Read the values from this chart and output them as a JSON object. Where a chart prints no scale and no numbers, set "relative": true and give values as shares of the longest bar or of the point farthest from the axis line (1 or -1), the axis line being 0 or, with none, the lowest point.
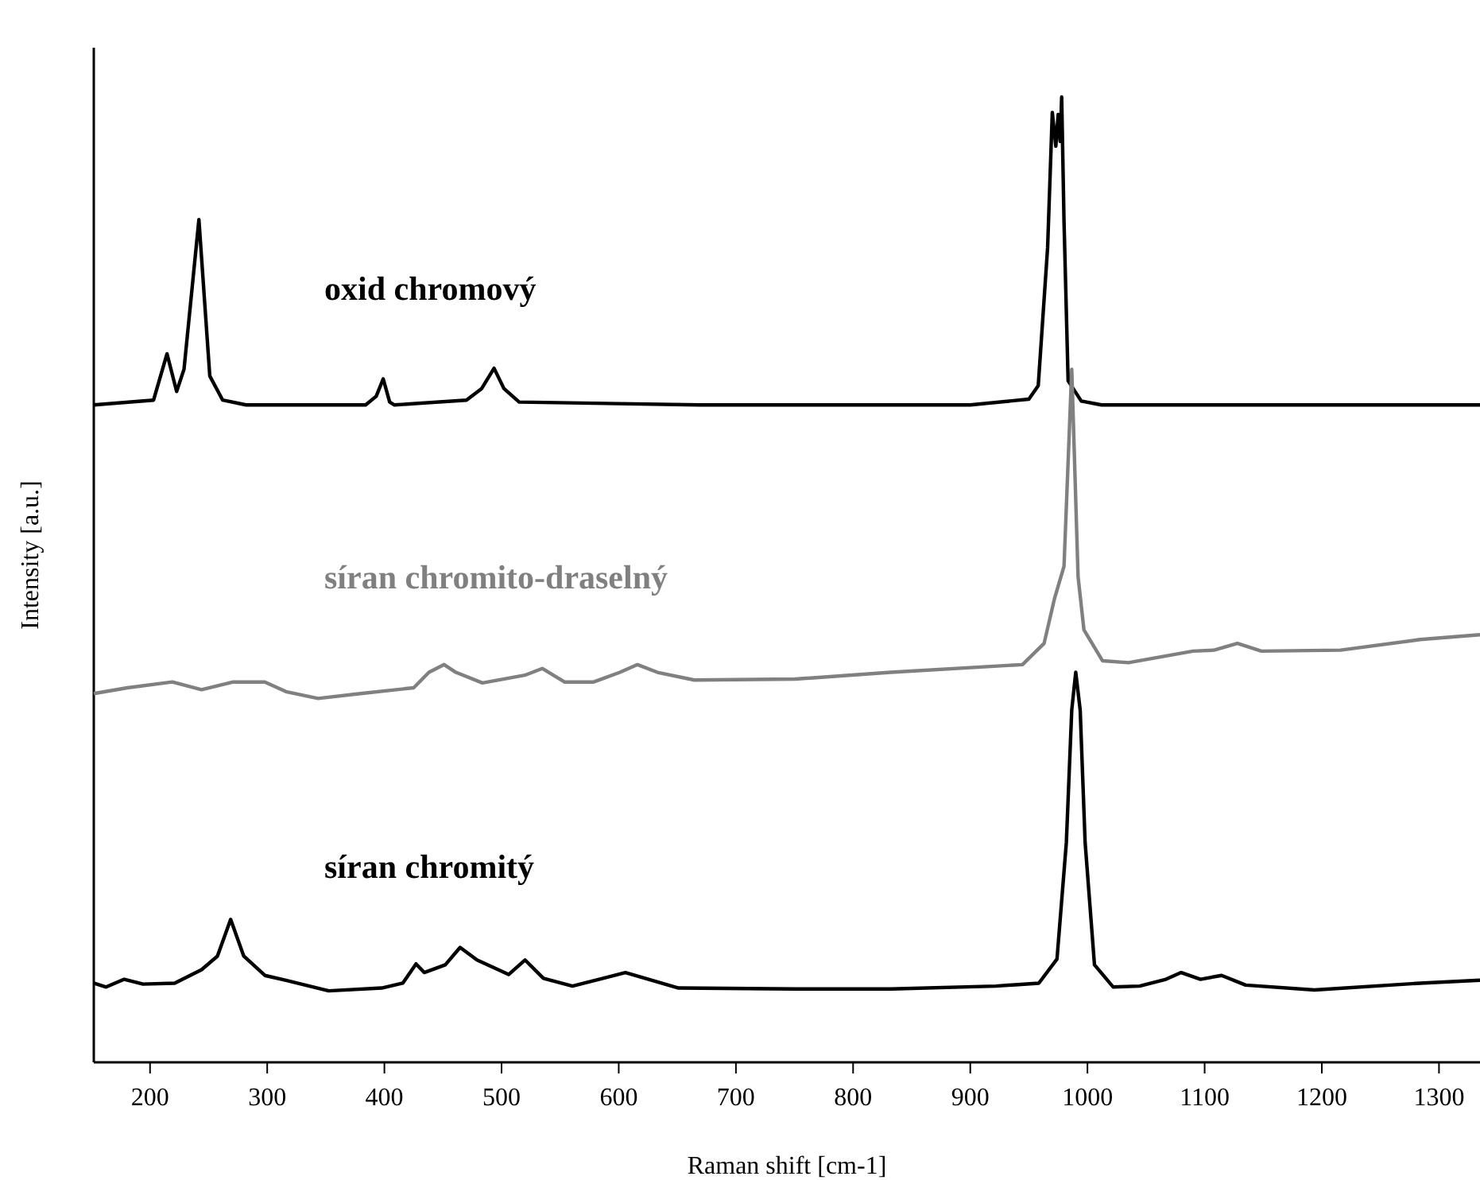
{
  "chart_data": {
    "type": "line",
    "xlabel": "Raman shift [cm-1]",
    "ylabel": "Intensity [a.u.]",
    "relative": true,
    "tick_labels": "x",
    "xlim": [
      152,
      1335
    ],
    "xticks": [
      200,
      300,
      400,
      500,
      600,
      700,
      800,
      900,
      1000,
      1100,
      1200,
      1300
    ],
    "grid": false,
    "legend": false,
    "marker": "none",
    "line_style": "solid",
    "series": [
      {
        "name": "oxid chromový",
        "color": "#000000",
        "x": [
          152,
          203,
          214.5,
          222.7,
          229,
          241.7,
          251,
          262,
          282,
          384,
          393,
          399,
          404.5,
          408.6,
          470,
          483,
          493.6,
          502,
          515,
          669,
          900,
          950,
          958,
          966,
          970,
          973,
          975,
          976.7,
          978,
          980,
          983.5,
          994.7,
          1012,
          1335
        ],
        "values": [
          0.681,
          0.686,
          0.734,
          0.695,
          0.718,
          0.873,
          0.711,
          0.686,
          0.681,
          0.681,
          0.69,
          0.708,
          0.684,
          0.681,
          0.686,
          0.698,
          0.719,
          0.698,
          0.684,
          0.681,
          0.681,
          0.687,
          0.701,
          0.844,
          0.984,
          0.949,
          0.982,
          0.954,
          1.0,
          0.871,
          0.706,
          0.685,
          0.681,
          0.681
        ]
      },
      {
        "name": "síran chromito-draselný",
        "color": "#808080",
        "x": [
          152,
          180.6,
          219,
          244,
          271,
          298,
          316,
          343.4,
          379.6,
          425,
          438,
          451,
          461,
          483.7,
          519.8,
          534.7,
          553.7,
          578.6,
          601,
          616,
          633,
          664.6,
          750.5,
          832,
          944.5,
          963,
          972,
          980,
          986.6,
          992,
          997,
          1012.8,
          1035,
          1090,
          1108,
          1128,
          1148.5,
          1216,
          1284,
          1335
        ],
        "values": [
          0.382,
          0.388,
          0.394,
          0.386,
          0.394,
          0.394,
          0.384,
          0.377,
          0.382,
          0.388,
          0.404,
          0.412,
          0.404,
          0.393,
          0.401,
          0.408,
          0.394,
          0.394,
          0.404,
          0.412,
          0.404,
          0.396,
          0.397,
          0.404,
          0.412,
          0.434,
          0.481,
          0.514,
          0.718,
          0.503,
          0.448,
          0.416,
          0.414,
          0.426,
          0.427,
          0.434,
          0.426,
          0.427,
          0.438,
          0.443
        ]
      },
      {
        "name": "síran chromitý",
        "color": "#000000",
        "x": [
          152,
          162.5,
          178,
          194,
          221,
          244,
          257.5,
          268.8,
          280,
          298,
          316,
          352.5,
          397.7,
          415.7,
          427,
          434,
          452,
          464.6,
          479,
          506,
          520,
          535.7,
          560.5,
          605.7,
          651,
          750.5,
          832,
          922,
          958.5,
          974,
          982,
          986.6,
          990,
          993.8,
          998,
          1006,
          1022,
          1044.5,
          1067,
          1080,
          1096.5,
          1114.5,
          1135,
          1193.7,
          1284,
          1335
        ],
        "values": [
          0.082,
          0.078,
          0.086,
          0.081,
          0.082,
          0.096,
          0.11,
          0.148,
          0.11,
          0.09,
          0.085,
          0.074,
          0.077,
          0.082,
          0.102,
          0.093,
          0.101,
          0.119,
          0.106,
          0.091,
          0.106,
          0.087,
          0.079,
          0.093,
          0.077,
          0.076,
          0.076,
          0.079,
          0.082,
          0.107,
          0.228,
          0.365,
          0.404,
          0.365,
          0.228,
          0.101,
          0.078,
          0.079,
          0.086,
          0.093,
          0.086,
          0.09,
          0.08,
          0.075,
          0.082,
          0.085
        ]
      }
    ]
  }
}
